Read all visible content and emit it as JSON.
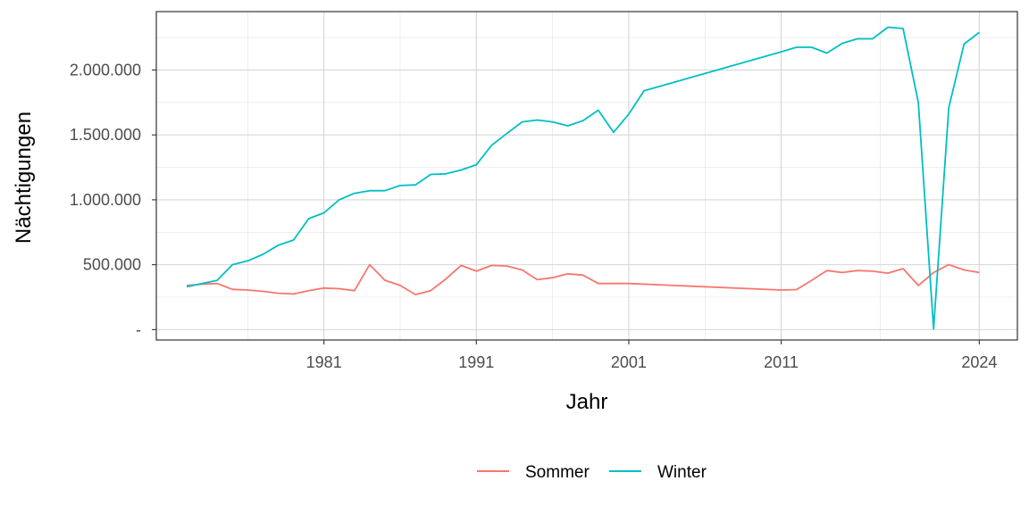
{
  "chart_data": {
    "type": "line",
    "title": "",
    "xlabel": "Jahr",
    "ylabel": "Nächtigungen",
    "xlim": [
      1970,
      2026.5
    ],
    "ylim": [
      -80000,
      2450000
    ],
    "x_ticks": [
      1981,
      1991,
      2001,
      2011,
      2024
    ],
    "y_ticks": [
      0,
      500000,
      1000000,
      1500000,
      2000000
    ],
    "y_tick_labels": [
      "-",
      "500.000",
      "1.000.000",
      "1.500.000",
      "2.000.000"
    ],
    "grid": true,
    "legend_position": "bottom",
    "series": [
      {
        "name": "Sommer",
        "color": "#F8766D",
        "points": [
          [
            1972,
            340000
          ],
          [
            1973,
            350000
          ],
          [
            1974,
            355000
          ],
          [
            1975,
            310000
          ],
          [
            1976,
            305000
          ],
          [
            1977,
            295000
          ],
          [
            1978,
            280000
          ],
          [
            1979,
            275000
          ],
          [
            1980,
            300000
          ],
          [
            1981,
            320000
          ],
          [
            1982,
            315000
          ],
          [
            1983,
            300000
          ],
          [
            1984,
            500000
          ],
          [
            1985,
            380000
          ],
          [
            1986,
            340000
          ],
          [
            1987,
            270000
          ],
          [
            1988,
            300000
          ],
          [
            1989,
            390000
          ],
          [
            1990,
            495000
          ],
          [
            1991,
            450000
          ],
          [
            1992,
            495000
          ],
          [
            1993,
            490000
          ],
          [
            1994,
            460000
          ],
          [
            1995,
            385000
          ],
          [
            1996,
            400000
          ],
          [
            1997,
            430000
          ],
          [
            1998,
            420000
          ],
          [
            1999,
            355000
          ],
          [
            2001,
            355000
          ],
          [
            2011,
            305000
          ],
          [
            2012,
            308000
          ],
          [
            2013,
            380000
          ],
          [
            2014,
            455000
          ],
          [
            2015,
            440000
          ],
          [
            2016,
            455000
          ],
          [
            2017,
            450000
          ],
          [
            2018,
            435000
          ],
          [
            2019,
            470000
          ],
          [
            2020,
            340000
          ],
          [
            2021,
            440000
          ],
          [
            2022,
            500000
          ],
          [
            2023,
            460000
          ],
          [
            2024,
            440000
          ]
        ]
      },
      {
        "name": "Winter",
        "color": "#00BFC4",
        "points": [
          [
            1972,
            330000
          ],
          [
            1973,
            355000
          ],
          [
            1974,
            380000
          ],
          [
            1975,
            500000
          ],
          [
            1976,
            530000
          ],
          [
            1977,
            580000
          ],
          [
            1978,
            650000
          ],
          [
            1979,
            690000
          ],
          [
            1980,
            855000
          ],
          [
            1981,
            900000
          ],
          [
            1982,
            1000000
          ],
          [
            1983,
            1050000
          ],
          [
            1984,
            1070000
          ],
          [
            1985,
            1070000
          ],
          [
            1986,
            1110000
          ],
          [
            1987,
            1115000
          ],
          [
            1988,
            1195000
          ],
          [
            1989,
            1200000
          ],
          [
            1990,
            1230000
          ],
          [
            1991,
            1270000
          ],
          [
            1992,
            1420000
          ],
          [
            1993,
            1510000
          ],
          [
            1994,
            1600000
          ],
          [
            1995,
            1615000
          ],
          [
            1996,
            1600000
          ],
          [
            1997,
            1570000
          ],
          [
            1998,
            1610000
          ],
          [
            1999,
            1690000
          ],
          [
            2000,
            1520000
          ],
          [
            2001,
            1660000
          ],
          [
            2002,
            1840000
          ],
          [
            2011,
            2140000
          ],
          [
            2012,
            2175000
          ],
          [
            2013,
            2175000
          ],
          [
            2014,
            2130000
          ],
          [
            2015,
            2205000
          ],
          [
            2016,
            2240000
          ],
          [
            2017,
            2240000
          ],
          [
            2018,
            2330000
          ],
          [
            2019,
            2320000
          ],
          [
            2020,
            1750000
          ],
          [
            2021,
            5000
          ],
          [
            2022,
            1710000
          ],
          [
            2023,
            2200000
          ],
          [
            2024,
            2290000
          ]
        ]
      }
    ]
  }
}
